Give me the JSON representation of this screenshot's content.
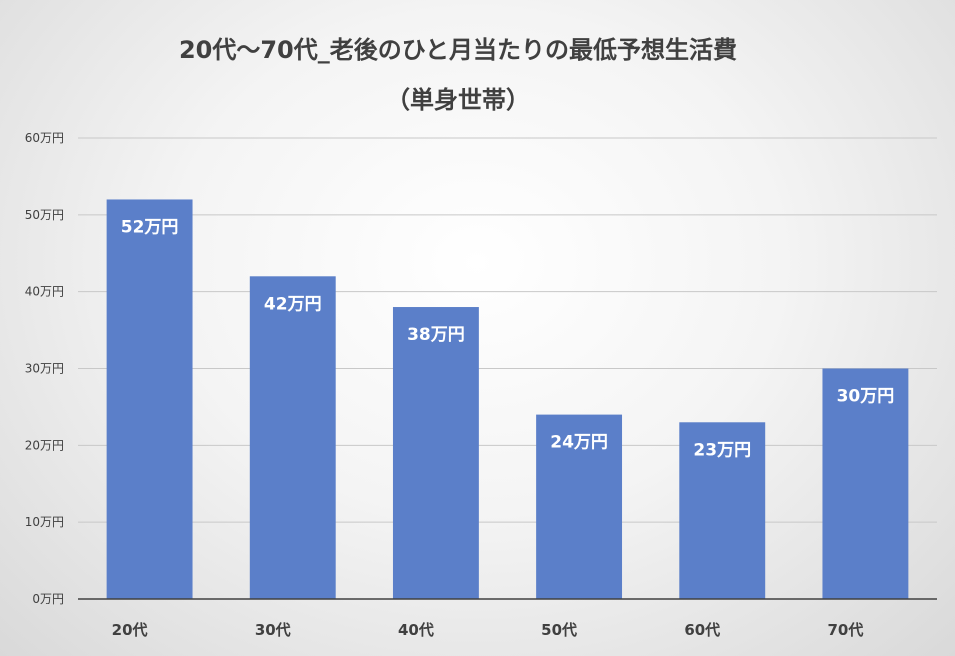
{
  "chart_data": {
    "type": "bar",
    "title": "20代〜70代_老後のひと月当たりの最低予想生活費",
    "subtitle": "（単身世帯）",
    "categories": [
      "20代",
      "30代",
      "40代",
      "50代",
      "60代",
      "70代"
    ],
    "values": [
      52,
      42,
      38,
      24,
      23,
      30
    ],
    "data_labels": [
      "52万円",
      "42万円",
      "38万円",
      "24万円",
      "23万円",
      "30万円"
    ],
    "y_ticks": [
      "0万円",
      "10万円",
      "20万円",
      "30万円",
      "40万円",
      "50万円",
      "60万円"
    ],
    "ylim": [
      0,
      60
    ],
    "y_unit": "万円",
    "grid": true,
    "legend": "none",
    "bar_color": "#5b7fc9",
    "grid_color": "#c8c8c8",
    "axis_color": "#404040"
  }
}
